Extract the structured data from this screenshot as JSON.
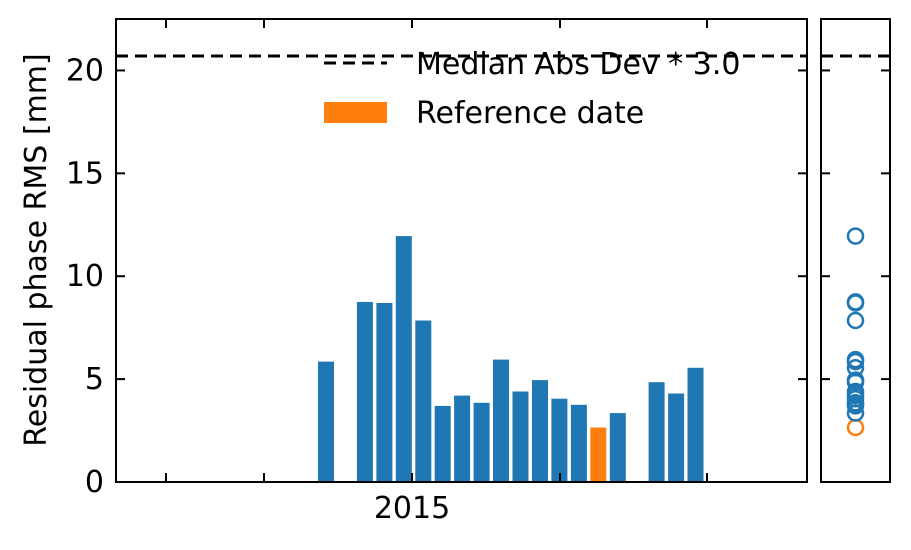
{
  "chart_data": [
    {
      "type": "bar",
      "ylabel": "Residual phase RMS [mm]",
      "xlabel": "",
      "ylim": [
        0,
        22.5
      ],
      "yticks": [
        0,
        5,
        10,
        15,
        20
      ],
      "xticks": [
        {
          "label": "2015"
        }
      ],
      "threshold": 20.7,
      "legend": {
        "placement": "upper-right",
        "entries": [
          {
            "label": "Median Abs Dev * 3.0",
            "kind": "dashed-line"
          },
          {
            "label": "Reference date",
            "kind": "patch"
          }
        ]
      },
      "bars": [
        {
          "value": 5.85,
          "reference": false
        },
        {
          "value": 8.75,
          "reference": false
        },
        {
          "value": 8.7,
          "reference": false
        },
        {
          "value": 11.95,
          "reference": false
        },
        {
          "value": 7.85,
          "reference": false
        },
        {
          "value": 3.7,
          "reference": false
        },
        {
          "value": 4.2,
          "reference": false
        },
        {
          "value": 3.85,
          "reference": false
        },
        {
          "value": 5.95,
          "reference": false
        },
        {
          "value": 4.4,
          "reference": false
        },
        {
          "value": 4.95,
          "reference": false
        },
        {
          "value": 4.05,
          "reference": false
        },
        {
          "value": 3.75,
          "reference": false
        },
        {
          "value": 2.65,
          "reference": true
        },
        {
          "value": 3.35,
          "reference": false
        },
        {
          "value": 4.85,
          "reference": false
        },
        {
          "value": 4.3,
          "reference": false
        },
        {
          "value": 5.55,
          "reference": false
        }
      ]
    },
    {
      "type": "scatter",
      "ylim": [
        0,
        22.5
      ],
      "threshold": 20.7
    }
  ],
  "colors": {
    "bar": "#1f77b4",
    "reference": "#ff7f0e",
    "threshold_line": "#000000"
  }
}
